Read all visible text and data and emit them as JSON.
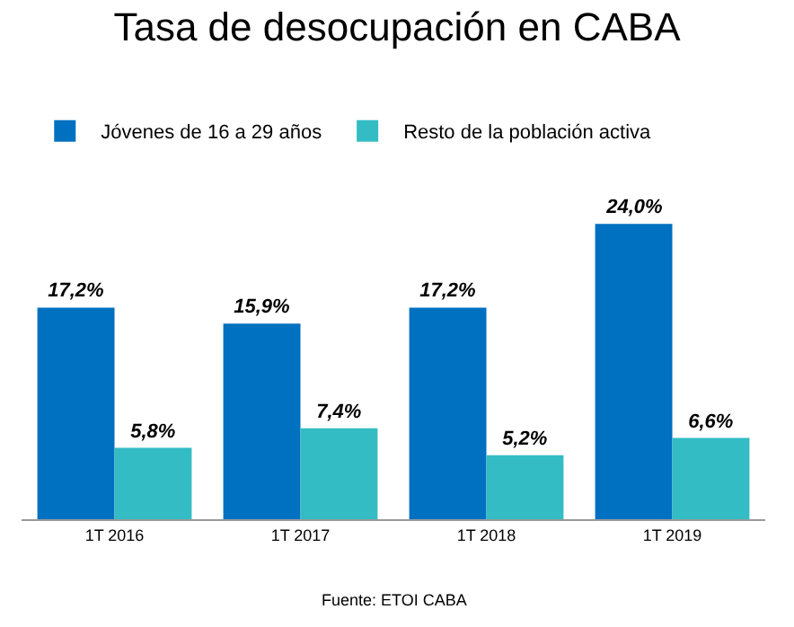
{
  "chart_data": {
    "type": "bar",
    "title": "Tasa de desocupación en CABA",
    "categories": [
      "1T 2016",
      "1T 2017",
      "1T 2018",
      "1T 2019"
    ],
    "series": [
      {
        "name": "Jóvenes de 16 a 29 años",
        "color": "#0070c0",
        "values": [
          17.2,
          15.9,
          17.2,
          24.0
        ],
        "value_labels": [
          "17,2%",
          "15,9%",
          "17,2%",
          "24,0%"
        ]
      },
      {
        "name": "Resto de la población activa",
        "color": "#33bcc4",
        "values": [
          5.8,
          7.4,
          5.2,
          6.6
        ],
        "value_labels": [
          "5,8%",
          "7,4%",
          "5,2%",
          "6,6%"
        ]
      }
    ],
    "legend": "top",
    "grid": false,
    "annotations": [
      "Fuente: ETOI CABA"
    ]
  }
}
